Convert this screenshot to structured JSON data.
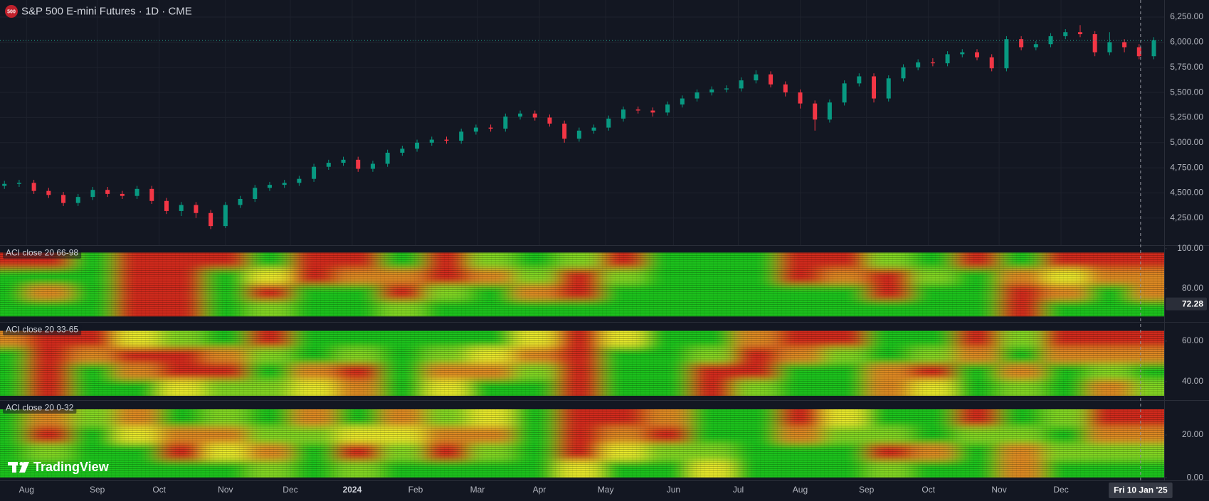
{
  "header": {
    "badge": "500",
    "title": "S&P 500 E-mini Futures · 1D · CME"
  },
  "watermark": "TradingView",
  "chart_data": [
    {
      "type": "candlestick",
      "x": [
        -1.5,
        -0.5,
        0.5,
        1.5,
        2.5,
        3.5,
        4.5,
        5.5,
        6.5,
        7.5,
        8.5,
        9.5,
        10.5,
        11.5,
        12.5,
        13.5,
        14.5,
        15.5,
        16.5,
        17.5,
        18.5,
        19.5,
        20.5,
        21.5,
        22.5,
        23.5,
        24.5,
        25.5,
        26.5,
        27.5,
        28.5,
        29.5,
        30.5,
        31.5,
        32.5,
        33.5,
        34.5,
        35.5,
        36.5,
        37.5,
        38.5,
        39.5,
        40.5,
        41.5,
        42.5,
        43.5,
        44.5,
        45.5,
        46.5,
        47.5,
        48.5,
        49.5,
        50.5,
        51.5,
        52.5,
        53.5,
        54.5,
        55.5,
        56.5,
        57.5,
        58.5,
        59.5,
        60.5,
        61.5,
        62.5,
        63.5,
        64.5,
        65.5,
        66.5,
        67.5,
        68.5,
        69.5,
        70.5,
        71.5,
        72.5,
        73.5,
        74.5,
        75.5,
        76.5
      ],
      "open": [
        4570,
        4590,
        4600,
        4520,
        4480,
        4400,
        4460,
        4530,
        4490,
        4470,
        4540,
        4420,
        4320,
        4380,
        4300,
        4170,
        4380,
        4440,
        4550,
        4580,
        4600,
        4640,
        4760,
        4800,
        4830,
        4740,
        4790,
        4900,
        4940,
        5000,
        5030,
        5020,
        5110,
        5150,
        5140,
        5260,
        5290,
        5250,
        5190,
        5040,
        5120,
        5150,
        5240,
        5330,
        5320,
        5300,
        5380,
        5440,
        5500,
        5530,
        5540,
        5620,
        5680,
        5580,
        5500,
        5390,
        5230,
        5400,
        5590,
        5660,
        5440,
        5640,
        5750,
        5800,
        5790,
        5880,
        5900,
        5850,
        5740,
        6030,
        5950,
        5980,
        6060,
        6100,
        6080,
        5900,
        6000,
        5950,
        5860
      ],
      "high": [
        4620,
        4630,
        4630,
        4550,
        4510,
        4490,
        4560,
        4560,
        4520,
        4570,
        4570,
        4450,
        4410,
        4410,
        4330,
        4410,
        4470,
        4580,
        4610,
        4630,
        4670,
        4790,
        4830,
        4860,
        4860,
        4820,
        4930,
        4970,
        5030,
        5060,
        5060,
        5140,
        5180,
        5180,
        5290,
        5320,
        5320,
        5280,
        5220,
        5150,
        5180,
        5270,
        5360,
        5360,
        5350,
        5410,
        5470,
        5530,
        5560,
        5570,
        5650,
        5720,
        5710,
        5610,
        5530,
        5420,
        5430,
        5620,
        5690,
        5690,
        5670,
        5780,
        5830,
        5840,
        5910,
        5930,
        5930,
        5880,
        6060,
        6060,
        6010,
        6090,
        6130,
        6170,
        6110,
        6100,
        6030,
        5980,
        6050
      ],
      "low": [
        4540,
        4560,
        4490,
        4450,
        4370,
        4370,
        4430,
        4460,
        4440,
        4440,
        4390,
        4290,
        4270,
        4250,
        4140,
        4150,
        4350,
        4410,
        4520,
        4550,
        4570,
        4610,
        4730,
        4770,
        4710,
        4710,
        4760,
        4870,
        4910,
        4970,
        4990,
        4990,
        5080,
        5110,
        5110,
        5230,
        5220,
        5160,
        5000,
        5010,
        5090,
        5120,
        5210,
        5290,
        5260,
        5270,
        5350,
        5410,
        5470,
        5500,
        5510,
        5590,
        5550,
        5460,
        5340,
        5120,
        5200,
        5370,
        5560,
        5400,
        5410,
        5610,
        5720,
        5760,
        5760,
        5850,
        5820,
        5710,
        5710,
        5920,
        5920,
        5950,
        6030,
        6050,
        5860,
        5870,
        5900,
        5830,
        5830
      ],
      "close": [
        4590,
        4600,
        4520,
        4480,
        4400,
        4460,
        4530,
        4490,
        4470,
        4540,
        4420,
        4320,
        4380,
        4300,
        4170,
        4380,
        4440,
        4550,
        4580,
        4600,
        4640,
        4760,
        4800,
        4830,
        4740,
        4790,
        4900,
        4940,
        5000,
        5030,
        5020,
        5110,
        5150,
        5140,
        5260,
        5290,
        5250,
        5190,
        5040,
        5120,
        5150,
        5240,
        5330,
        5320,
        5300,
        5380,
        5440,
        5500,
        5530,
        5540,
        5620,
        5680,
        5580,
        5500,
        5390,
        5230,
        5400,
        5590,
        5660,
        5440,
        5640,
        5750,
        5800,
        5790,
        5880,
        5900,
        5850,
        5740,
        6030,
        5950,
        5980,
        6060,
        6100,
        6080,
        5900,
        6000,
        5950,
        5860,
        6020
      ],
      "up_color": "#089981",
      "down_color": "#f23645",
      "last_line_color": "#22ab94",
      "xlim": [
        -1.8,
        77.2
      ],
      "ylim": [
        3980,
        6420
      ],
      "grid": true,
      "yticks": [
        {
          "value": 4250,
          "label": "4,250.00"
        },
        {
          "value": 4500,
          "label": "4,500.00"
        },
        {
          "value": 4750,
          "label": "4,750.00"
        },
        {
          "value": 5000,
          "label": "5,000.00"
        },
        {
          "value": 5250,
          "label": "5,250.00"
        },
        {
          "value": 5500,
          "label": "5,500.00"
        },
        {
          "value": 5750,
          "label": "5,750.00"
        },
        {
          "value": 6000,
          "label": "6,000.00"
        },
        {
          "value": 6250,
          "label": "6,250.00"
        }
      ],
      "xticks": [
        {
          "value": 0,
          "label": "Aug"
        },
        {
          "value": 4.8,
          "label": "Sep"
        },
        {
          "value": 9,
          "label": "Oct"
        },
        {
          "value": 13.5,
          "label": "Nov"
        },
        {
          "value": 17.9,
          "label": "Dec"
        },
        {
          "value": 22.1,
          "label": "2024"
        },
        {
          "value": 26.4,
          "label": "Feb"
        },
        {
          "value": 30.6,
          "label": "Mar"
        },
        {
          "value": 34.8,
          "label": "Apr"
        },
        {
          "value": 39.3,
          "label": "May"
        },
        {
          "value": 43.9,
          "label": "Jun"
        },
        {
          "value": 48.3,
          "label": "Jul"
        },
        {
          "value": 52.5,
          "label": "Aug"
        },
        {
          "value": 57,
          "label": "Sep"
        },
        {
          "value": 61.2,
          "label": "Oct"
        },
        {
          "value": 66,
          "label": "Nov"
        },
        {
          "value": 70.2,
          "label": "Dec"
        }
      ],
      "crosshair": {
        "value": 75.6,
        "label": "Fri 10 Jan '25"
      }
    },
    {
      "type": "heatmap",
      "label": "ACI close 20 66-98",
      "x": [
        -1.5,
        1.5,
        4.5,
        7.5,
        10.5,
        13.5,
        16.5,
        19.5,
        22.5,
        25.5,
        28.5,
        31.5,
        34.5,
        37.5,
        40.5,
        43.5,
        46.5,
        49.5,
        52.5,
        55.5,
        58.5,
        61.5,
        64.5,
        67.5,
        70.5,
        73.5,
        76.5
      ],
      "rows": [
        {
          "level": 94,
          "values": [
            70,
            70,
            20,
            90,
            80,
            70,
            20,
            80,
            90,
            30,
            80,
            40,
            20,
            40,
            70,
            20,
            10,
            20,
            90,
            80,
            40,
            20,
            70,
            30,
            80,
            70,
            80
          ]
        },
        {
          "level": 86,
          "values": [
            30,
            20,
            10,
            80,
            90,
            20,
            50,
            70,
            60,
            60,
            70,
            60,
            40,
            80,
            40,
            10,
            10,
            10,
            70,
            60,
            70,
            40,
            30,
            60,
            50,
            60,
            60
          ]
        },
        {
          "level": 78,
          "values": [
            10,
            60,
            20,
            70,
            80,
            20,
            70,
            30,
            20,
            80,
            40,
            30,
            60,
            80,
            20,
            10,
            10,
            10,
            20,
            30,
            70,
            30,
            20,
            80,
            60,
            20,
            60
          ]
        },
        {
          "level": 70,
          "values": [
            10,
            20,
            10,
            80,
            90,
            10,
            40,
            20,
            10,
            40,
            20,
            20,
            20,
            30,
            10,
            10,
            20,
            30,
            10,
            10,
            30,
            20,
            10,
            80,
            30,
            20,
            30
          ]
        }
      ],
      "colors": [
        "#1ec21b",
        "#e6e629",
        "#d0291b"
      ],
      "color_stops": [
        30,
        50,
        70
      ],
      "clim": [
        0,
        100
      ],
      "ylim": [
        64.3,
        101.4
      ],
      "yticks": [
        {
          "value": 80,
          "label": "80.00"
        },
        {
          "value": 100,
          "label": "100.00"
        }
      ],
      "last_value": 72.28
    },
    {
      "type": "heatmap",
      "label": "ACI close 20 33-65",
      "x": [
        -1.5,
        1.5,
        4.5,
        7.5,
        10.5,
        13.5,
        16.5,
        19.5,
        22.5,
        25.5,
        28.5,
        31.5,
        34.5,
        37.5,
        40.5,
        43.5,
        46.5,
        49.5,
        52.5,
        55.5,
        58.5,
        61.5,
        64.5,
        67.5,
        70.5,
        73.5,
        76.5
      ],
      "rows": [
        {
          "level": 61,
          "values": [
            60,
            70,
            80,
            50,
            40,
            30,
            80,
            20,
            20,
            20,
            20,
            30,
            50,
            90,
            50,
            10,
            20,
            60,
            80,
            70,
            20,
            20,
            70,
            40,
            80,
            80,
            80
          ]
        },
        {
          "level": 53,
          "values": [
            20,
            80,
            60,
            70,
            80,
            60,
            40,
            30,
            40,
            20,
            40,
            50,
            60,
            90,
            20,
            10,
            40,
            80,
            60,
            40,
            30,
            40,
            60,
            30,
            60,
            60,
            60
          ]
        },
        {
          "level": 45,
          "values": [
            20,
            90,
            30,
            60,
            90,
            70,
            30,
            60,
            70,
            30,
            60,
            60,
            40,
            90,
            20,
            10,
            80,
            70,
            30,
            20,
            60,
            70,
            30,
            60,
            20,
            40,
            30
          ]
        },
        {
          "level": 37,
          "values": [
            10,
            80,
            20,
            20,
            50,
            40,
            40,
            50,
            60,
            30,
            50,
            30,
            20,
            80,
            20,
            10,
            70,
            40,
            20,
            20,
            60,
            50,
            20,
            40,
            20,
            60,
            40
          ]
        }
      ],
      "colors": [
        "#1ec21b",
        "#e6e629",
        "#d0291b"
      ],
      "color_stops": [
        30,
        50,
        70
      ],
      "clim": [
        0,
        100
      ],
      "ylim": [
        31.9,
        69.1
      ],
      "yticks": [
        {
          "value": 40,
          "label": "40.00"
        },
        {
          "value": 60,
          "label": "60.00"
        }
      ]
    },
    {
      "type": "heatmap",
      "label": "ACI close 20 0-32",
      "x": [
        -1.5,
        1.5,
        4.5,
        7.5,
        10.5,
        13.5,
        16.5,
        19.5,
        22.5,
        25.5,
        28.5,
        31.5,
        34.5,
        37.5,
        40.5,
        43.5,
        46.5,
        49.5,
        52.5,
        55.5,
        58.5,
        61.5,
        64.5,
        67.5,
        70.5,
        73.5,
        76.5
      ],
      "rows": [
        {
          "level": 28,
          "values": [
            20,
            60,
            40,
            60,
            30,
            40,
            20,
            60,
            30,
            60,
            40,
            50,
            20,
            90,
            80,
            60,
            20,
            30,
            80,
            50,
            30,
            20,
            70,
            20,
            40,
            70,
            70
          ]
        },
        {
          "level": 20,
          "values": [
            20,
            70,
            30,
            50,
            60,
            60,
            40,
            40,
            50,
            50,
            60,
            60,
            20,
            90,
            60,
            70,
            20,
            30,
            60,
            40,
            40,
            30,
            40,
            40,
            30,
            60,
            60
          ]
        },
        {
          "level": 12,
          "values": [
            10,
            40,
            20,
            30,
            70,
            50,
            60,
            30,
            70,
            40,
            70,
            40,
            20,
            80,
            50,
            40,
            40,
            20,
            30,
            30,
            70,
            60,
            30,
            60,
            40,
            40,
            40
          ]
        },
        {
          "level": 4,
          "values": [
            10,
            20,
            10,
            20,
            30,
            20,
            40,
            20,
            40,
            20,
            30,
            20,
            10,
            50,
            20,
            20,
            50,
            10,
            20,
            20,
            40,
            30,
            20,
            60,
            30,
            20,
            20
          ]
        }
      ],
      "colors": [
        "#1ec21b",
        "#e6e629",
        "#d0291b"
      ],
      "color_stops": [
        30,
        50,
        70
      ],
      "clim": [
        0,
        100
      ],
      "ylim": [
        -1.3,
        36
      ],
      "yticks": [
        {
          "value": 0,
          "label": "0.00"
        },
        {
          "value": 20,
          "label": "20.00"
        }
      ]
    }
  ]
}
